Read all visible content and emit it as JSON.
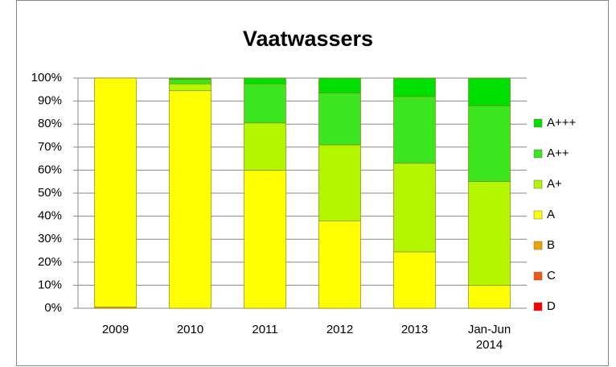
{
  "chart_data": {
    "type": "stacked_bar",
    "title": "Vaatwassers",
    "categories": [
      "2009",
      "2010",
      "2011",
      "2012",
      "2013",
      "Jan-Jun 2014"
    ],
    "series": [
      {
        "name": "D",
        "color": "#ff0000",
        "values": [
          0,
          0,
          0,
          0,
          0,
          0
        ]
      },
      {
        "name": "C",
        "color": "#f05a14",
        "values": [
          0,
          0,
          0,
          0,
          0,
          0
        ]
      },
      {
        "name": "B",
        "color": "#f0a000",
        "values": [
          0.5,
          0,
          0,
          0,
          0,
          0
        ]
      },
      {
        "name": "A",
        "color": "#ffff00",
        "values": [
          99.5,
          94.5,
          60,
          38,
          24.5,
          10
        ]
      },
      {
        "name": "A+",
        "color": "#b4f500",
        "values": [
          0,
          3,
          20.5,
          33,
          38.5,
          45
        ]
      },
      {
        "name": "A++",
        "color": "#3ce61e",
        "values": [
          0,
          2,
          17,
          22.5,
          29,
          33
        ]
      },
      {
        "name": "A+++",
        "color": "#00e000",
        "values": [
          0,
          0.5,
          2.5,
          6.5,
          8,
          12
        ]
      }
    ],
    "ylim": [
      0,
      100
    ],
    "yticks": [
      {
        "value": 0,
        "label": "0%"
      },
      {
        "value": 10,
        "label": "10%"
      },
      {
        "value": 20,
        "label": "20%"
      },
      {
        "value": 30,
        "label": "30%"
      },
      {
        "value": 40,
        "label": "40%"
      },
      {
        "value": 50,
        "label": "50%"
      },
      {
        "value": 60,
        "label": "60%"
      },
      {
        "value": 70,
        "label": "70%"
      },
      {
        "value": 80,
        "label": "80%"
      },
      {
        "value": 90,
        "label": "90%"
      },
      {
        "value": 100,
        "label": "100%"
      }
    ],
    "grid": true,
    "legend": "right"
  }
}
